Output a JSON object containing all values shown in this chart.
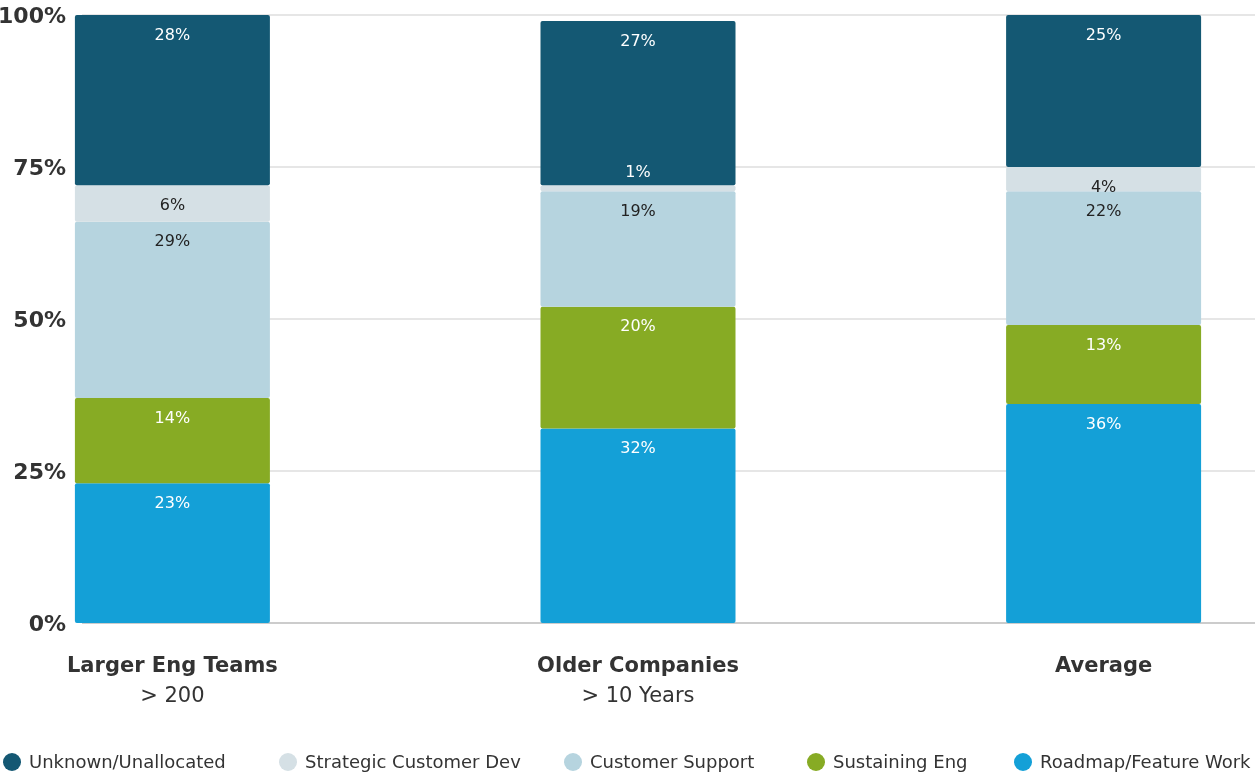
{
  "chart_data": {
    "type": "bar",
    "stacked": true,
    "categories": [
      "Larger Eng Teams\n> 200",
      "Older Companies\n> 10 Years",
      "Average"
    ],
    "series": [
      {
        "name": "Roadmap/Feature Work",
        "color": "#14a0d7",
        "values": [
          23,
          32,
          36
        ],
        "value_labels": [
          "23%",
          "32%",
          "36%"
        ]
      },
      {
        "name": "Sustaining Eng",
        "color": "#87ab24",
        "values": [
          14,
          20,
          13
        ],
        "value_labels": [
          "14%",
          "20%",
          "13%"
        ]
      },
      {
        "name": "Customer Support",
        "color": "#b6d4df",
        "values": [
          29,
          19,
          22
        ],
        "value_labels": [
          "29%",
          "19%",
          "22%"
        ]
      },
      {
        "name": "Strategic Customer Dev",
        "color": "#d5e0e5",
        "values": [
          6,
          1,
          4
        ],
        "value_labels": [
          "6%",
          "1%",
          "4%"
        ]
      },
      {
        "name": "Unknown/Unallocated",
        "color": "#145873",
        "values": [
          28,
          27,
          25
        ],
        "value_labels": [
          "28%",
          "27%",
          "25%"
        ]
      }
    ],
    "ylim": [
      0,
      100
    ],
    "yticks": [
      {
        "value": 0,
        "label": "0%"
      },
      {
        "value": 25,
        "label": "25%"
      },
      {
        "value": 50,
        "label": "50%"
      },
      {
        "value": 75,
        "label": "75%"
      },
      {
        "value": 100,
        "label": "100%"
      }
    ],
    "grid": "y",
    "legend": "bottom"
  }
}
